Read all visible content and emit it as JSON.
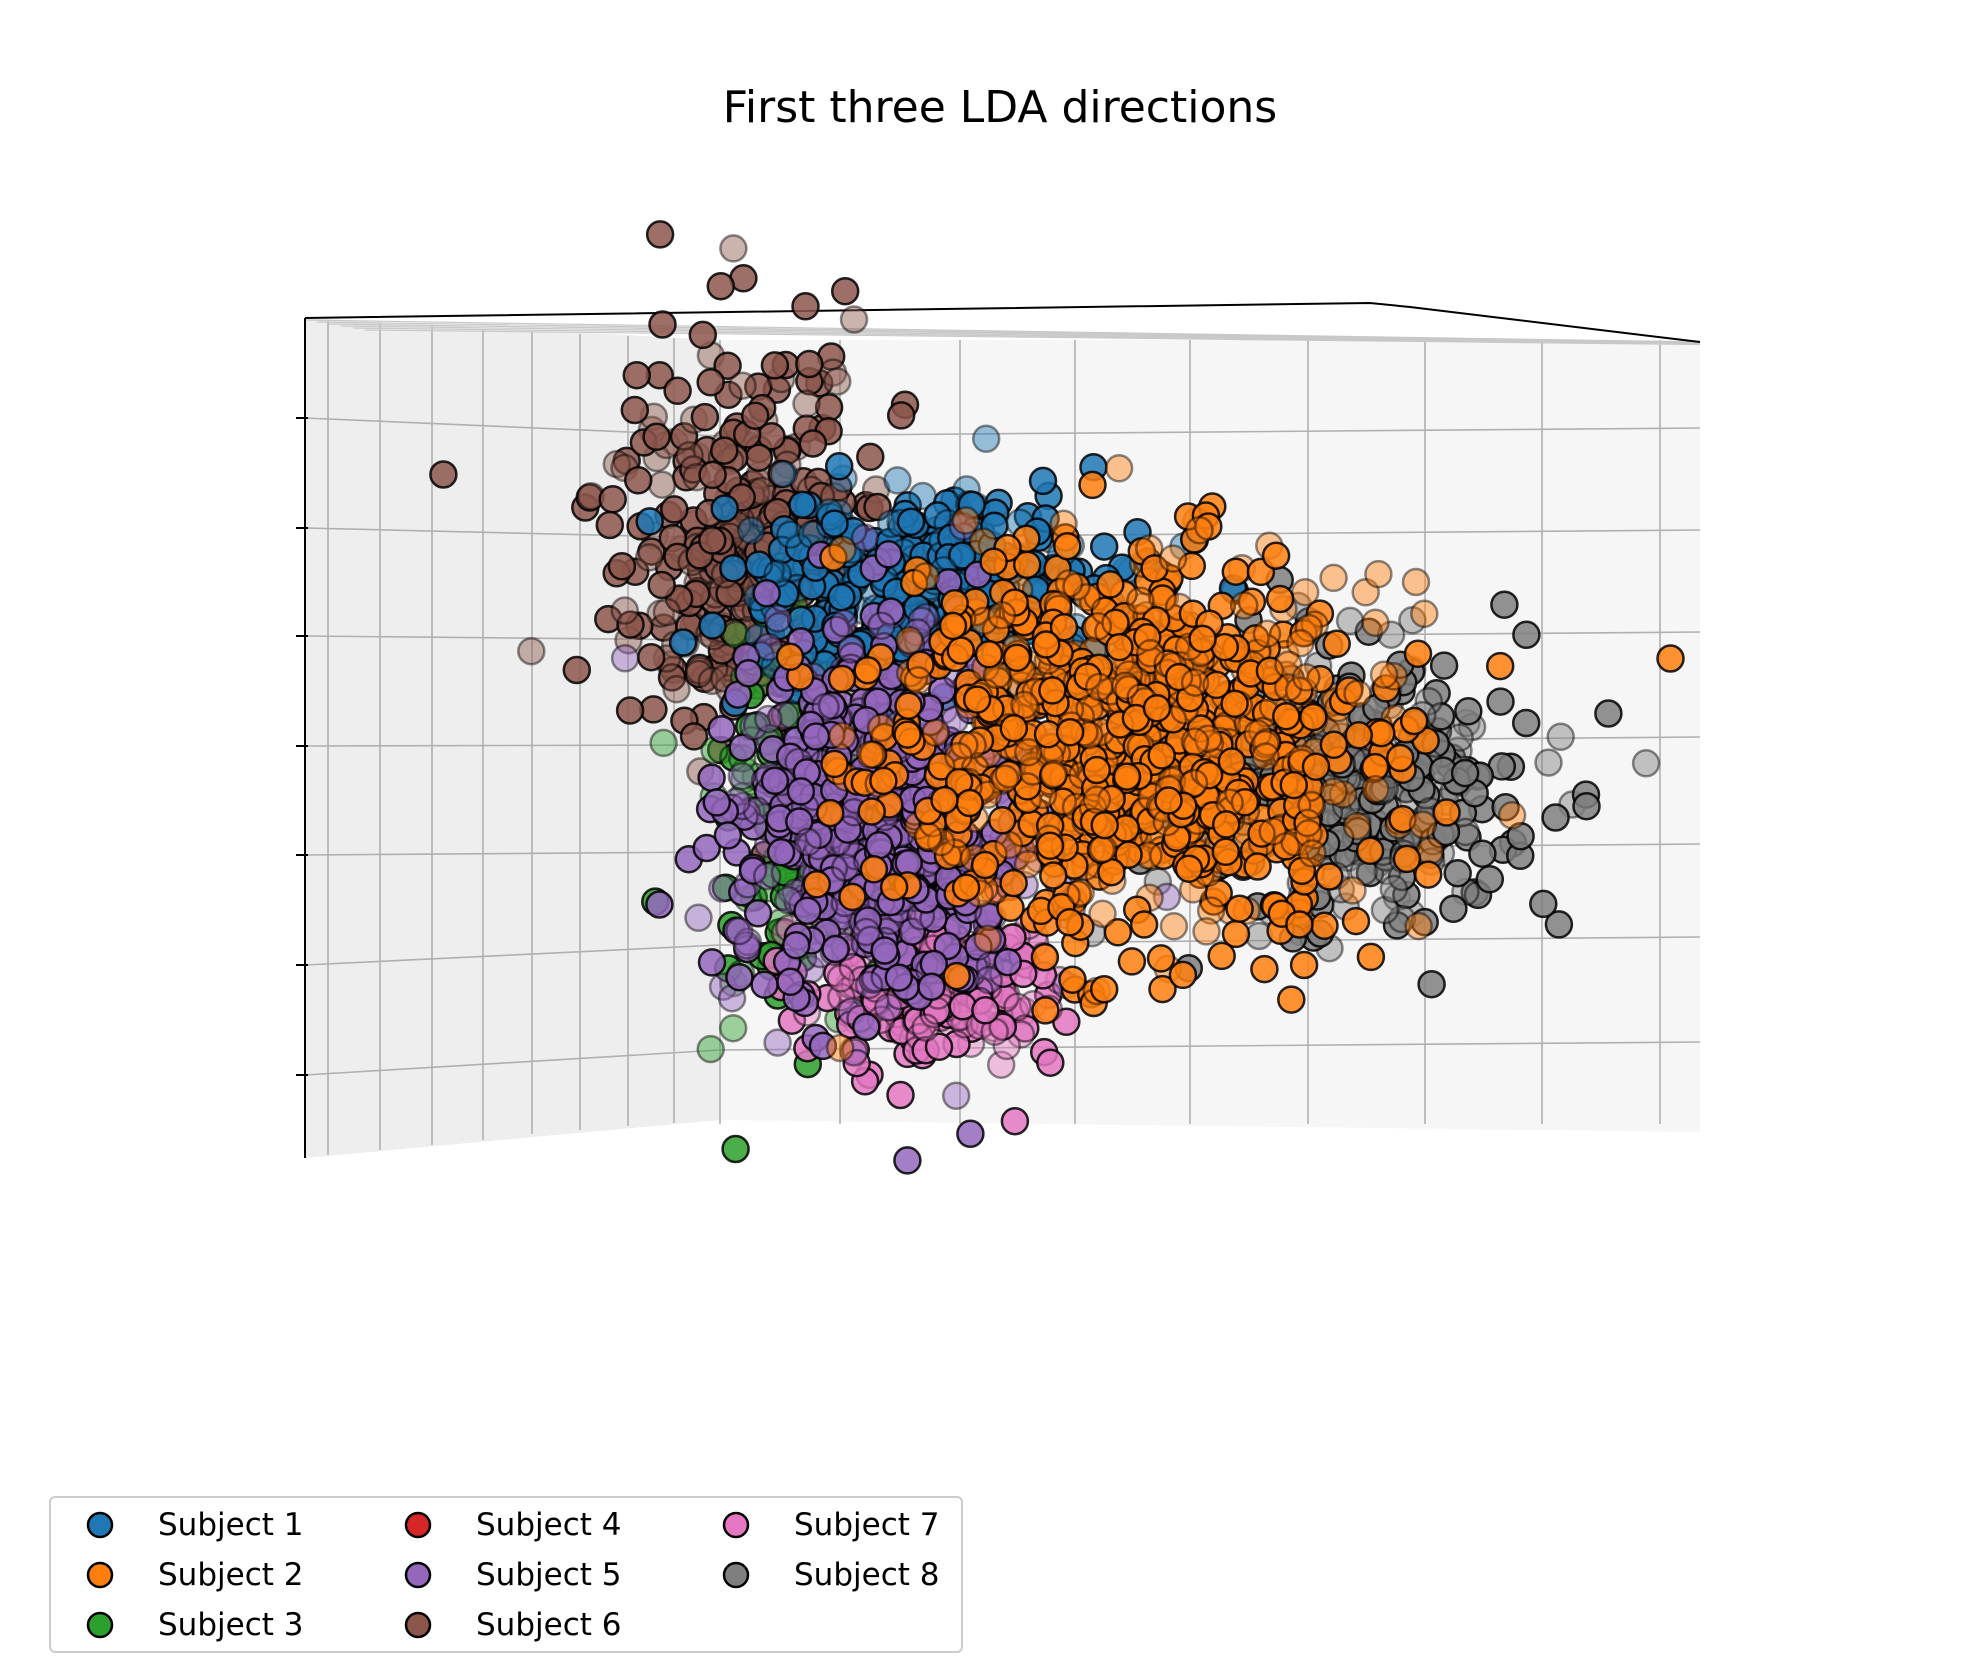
{
  "chart_data": {
    "type": "scatter",
    "projection": "3d",
    "title": "First three LDA directions",
    "xlabel": "",
    "ylabel": "",
    "zlabel": "",
    "grid": true,
    "tick_labels_visible": false,
    "legend": {
      "placement": "lower-left",
      "columns": 3
    },
    "series": [
      {
        "name": "Subject 1",
        "color": "#1f77b4"
      },
      {
        "name": "Subject 2",
        "color": "#ff7f0e"
      },
      {
        "name": "Subject 3",
        "color": "#2ca02c"
      },
      {
        "name": "Subject 4",
        "color": "#d62728"
      },
      {
        "name": "Subject 5",
        "color": "#9467bd"
      },
      {
        "name": "Subject 6",
        "color": "#8c564b"
      },
      {
        "name": "Subject 7",
        "color": "#e377c2"
      },
      {
        "name": "Subject 8",
        "color": "#7f7f7f"
      }
    ]
  }
}
